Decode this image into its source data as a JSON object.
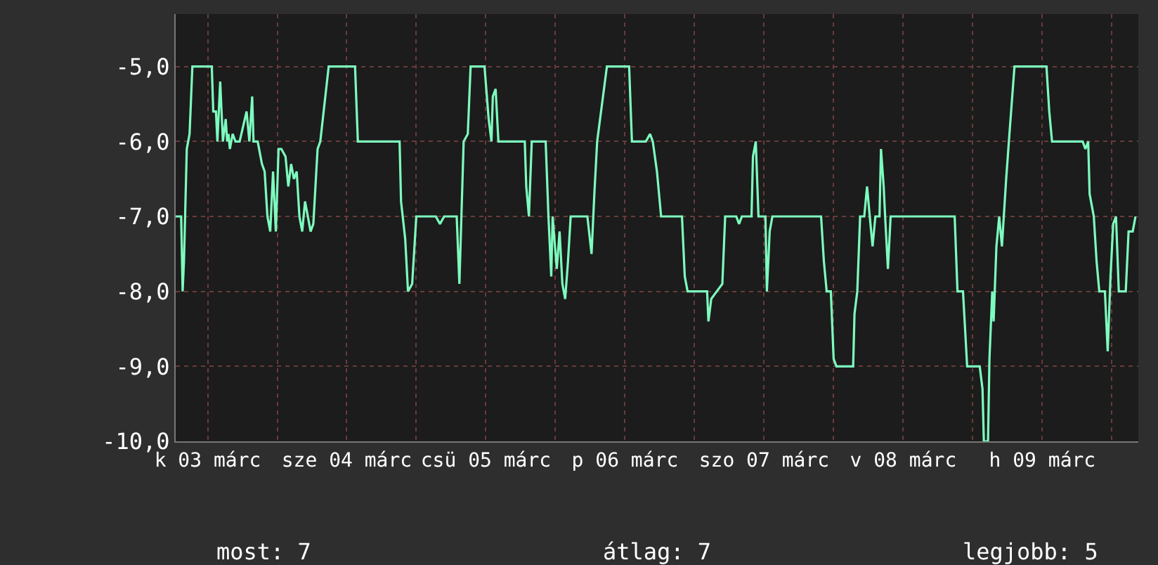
{
  "chart_data": {
    "type": "line",
    "x": [
      "--03-03T06:29",
      "--03-03T07:26",
      "--03-03T07:41",
      "--03-03T07:55",
      "--03-03T08:24",
      "--03-03T08:53",
      "--03-03T09:22",
      "--03-03T12:43",
      "--03-03T12:58",
      "--03-03T13:26",
      "--03-03T13:41",
      "--03-03T14:10",
      "--03-03T14:24",
      "--03-03T14:38",
      "--03-03T15:07",
      "--03-03T15:22",
      "--03-03T15:36",
      "--03-03T15:50",
      "--03-03T16:19",
      "--03-03T16:48",
      "--03-03T17:31",
      "--03-03T18:43",
      "--03-03T19:12",
      "--03-03T19:41",
      "--03-03T19:55",
      "--03-03T20:38",
      "--03-03T21:22",
      "--03-03T21:50",
      "--03-03T22:19",
      "--03-03T22:48",
      "--03-03T23:17",
      "--03-03T23:46",
      "--03-04T00:14",
      "--03-04T00:43",
      "--03-04T01:26",
      "--03-04T01:55",
      "--03-04T02:24",
      "--03-04T02:53",
      "--03-04T03:22",
      "--03-04T03:50",
      "--03-04T04:19",
      "--03-04T04:48",
      "--03-04T05:17",
      "--03-04T05:46",
      "--03-04T06:14",
      "--03-04T06:58",
      "--03-04T07:26",
      "--03-04T08:53",
      "--03-04T13:26",
      "--03-04T13:55",
      "--03-04T21:07",
      "--03-04T21:22",
      "--03-04T22:05",
      "--03-04T22:34",
      "--03-04T23:17",
      "--03-05T00:00",
      "--03-05T03:22",
      "--03-05T04:05",
      "--03-05T04:48",
      "--03-05T06:58",
      "--03-05T07:26",
      "--03-05T08:10",
      "--03-05T08:53",
      "--03-05T09:22",
      "--03-05T11:46",
      "--03-05T12:29",
      "--03-05T12:58",
      "--03-05T13:12",
      "--03-05T13:41",
      "--03-05T14:10",
      "--03-05T18:43",
      "--03-05T18:58",
      "--03-05T19:26",
      "--03-05T19:55",
      "--03-05T22:19",
      "--03-05T22:48",
      "--03-05T23:17",
      "--03-05T23:31",
      "--03-06T00:14",
      "--03-06T00:43",
      "--03-06T01:12",
      "--03-06T01:41",
      "--03-06T02:10",
      "--03-06T02:38",
      "--03-06T05:31",
      "--03-06T06:14",
      "--03-06T06:43",
      "--03-06T07:12",
      "--03-06T08:53",
      "--03-06T12:43",
      "--03-06T13:12",
      "--03-06T15:36",
      "--03-06T16:19",
      "--03-06T16:48",
      "--03-06T17:31",
      "--03-06T18:14",
      "--03-06T21:50",
      "--03-06T22:19",
      "--03-06T22:48",
      "--03-07T02:10",
      "--03-07T02:24",
      "--03-07T02:53",
      "--03-07T03:50",
      "--03-07T04:48",
      "--03-07T05:17",
      "--03-07T07:12",
      "--03-07T07:41",
      "--03-07T08:10",
      "--03-07T09:50",
      "--03-07T10:05",
      "--03-07T10:34",
      "--03-07T11:02",
      "--03-07T12:14",
      "--03-07T12:29",
      "--03-07T12:58",
      "--03-07T13:26",
      "--03-07T14:24",
      "--03-07T21:50",
      "--03-07T22:19",
      "--03-07T22:48",
      "--03-07T23:31",
      "--03-08T00:00",
      "--03-08T00:29",
      "--03-08T03:22",
      "--03-08T03:36",
      "--03-08T04:05",
      "--03-08T04:34",
      "--03-08T05:17",
      "--03-08T05:46",
      "--03-08T06:14",
      "--03-08T06:43",
      "--03-08T07:12",
      "--03-08T07:55",
      "--03-08T08:10",
      "--03-08T08:38",
      "--03-08T08:53",
      "--03-08T09:22",
      "--03-08T09:50",
      "--03-08T13:12",
      "--03-08T20:53",
      "--03-08T21:22",
      "--03-08T22:19",
      "--03-08T23:02",
      "--03-09T01:12",
      "--03-09T01:41",
      "--03-09T01:55",
      "--03-09T02:38",
      "--03-09T02:53",
      "--03-09T03:22",
      "--03-09T03:36",
      "--03-09T04:05",
      "--03-09T04:34",
      "--03-09T05:02",
      "--03-09T05:46",
      "--03-09T06:14",
      "--03-09T07:12",
      "--03-09T12:43",
      "--03-09T13:12",
      "--03-09T13:41",
      "--03-09T18:58",
      "--03-09T19:26",
      "--03-09T19:55",
      "--03-09T20:10",
      "--03-09T20:53",
      "--03-09T21:22",
      "--03-09T21:50",
      "--03-09T22:48",
      "--03-09T23:17",
      "--03-09T23:46",
      "--03-10T00:14",
      "--03-10T00:43",
      "--03-10T01:12",
      "--03-10T02:24",
      "--03-10T02:53",
      "--03-10T03:36",
      "--03-10T04:05"
    ],
    "series": [
      {
        "color": "#7dfcbe",
        "values": [
          -7,
          -7,
          -8,
          -7.6,
          -6.1,
          -5.9,
          -5.0,
          -5.0,
          -5.6,
          -5.6,
          -6.0,
          -5.2,
          -5.6,
          -6.0,
          -5.7,
          -6.0,
          -5.9,
          -6.1,
          -5.9,
          -6.0,
          -6.0,
          -5.6,
          -6.0,
          -5.4,
          -6.0,
          -6.0,
          -6.3,
          -6.4,
          -7.0,
          -7.2,
          -6.4,
          -7.2,
          -6.1,
          -6.1,
          -6.2,
          -6.6,
          -6.3,
          -6.5,
          -6.4,
          -7.0,
          -7.2,
          -6.8,
          -7.0,
          -7.2,
          -7.1,
          -6.1,
          -6.0,
          -5.0,
          -5.0,
          -6.0,
          -6.0,
          -6.8,
          -7.3,
          -8.0,
          -7.9,
          -7.0,
          -7.0,
          -7.1,
          -7.0,
          -7.0,
          -7.9,
          -6.0,
          -5.9,
          -5.0,
          -5.0,
          -5.7,
          -6.0,
          -5.4,
          -5.3,
          -6.0,
          -6.0,
          -6.6,
          -7.0,
          -6.0,
          -6.0,
          -7.0,
          -7.8,
          -7.0,
          -7.7,
          -7.2,
          -7.9,
          -8.1,
          -7.6,
          -7.0,
          -7.0,
          -7.5,
          -6.7,
          -6.0,
          -5.0,
          -5.0,
          -6.0,
          -6.0,
          -5.9,
          -6.0,
          -6.4,
          -7.0,
          -7.0,
          -7.8,
          -8.0,
          -8.0,
          -8.4,
          -8.1,
          -8.0,
          -7.9,
          -7.0,
          -7.0,
          -7.1,
          -7.0,
          -7.0,
          -6.2,
          -6.0,
          -7.0,
          -7.0,
          -8.0,
          -7.2,
          -7.0,
          -7.0,
          -7.0,
          -7.6,
          -8.0,
          -8.0,
          -8.9,
          -9.0,
          -9.0,
          -8.3,
          -8.0,
          -7.0,
          -7.0,
          -6.6,
          -7.0,
          -7.4,
          -7.0,
          -7.0,
          -6.1,
          -6.6,
          -7.0,
          -7.7,
          -7.0,
          -7.0,
          -7.0,
          -8.0,
          -8.0,
          -9.0,
          -9.0,
          -9.3,
          -10.0,
          -10.0,
          -8.9,
          -8.0,
          -8.4,
          -7.4,
          -7.0,
          -7.4,
          -6.5,
          -6.0,
          -5.0,
          -5.0,
          -5.6,
          -6.0,
          -6.0,
          -6.1,
          -6.0,
          -6.7,
          -7.0,
          -7.6,
          -8.0,
          -8.0,
          -8.8,
          -7.8,
          -7.1,
          -7.0,
          -8.0,
          -8.0,
          -7.2,
          -7.2,
          -7.0
        ]
      }
    ],
    "xlim": [
      "--03-03T06:29",
      "--03-10T04:34"
    ],
    "xticks": [
      {
        "value": "--03-03T12:00",
        "label": "k 03 márc"
      },
      {
        "value": "--03-04",
        "label": null
      },
      {
        "value": "--03-04T12:00",
        "label": "sze 04 márc"
      },
      {
        "value": "--03-05",
        "label": null
      },
      {
        "value": "--03-05T12:00",
        "label": "csü 05 márc"
      },
      {
        "value": "--03-06",
        "label": null
      },
      {
        "value": "--03-06T12:00",
        "label": "p 06 márc"
      },
      {
        "value": "--03-07",
        "label": null
      },
      {
        "value": "--03-07T12:00",
        "label": "szo 07 márc"
      },
      {
        "value": "--03-08",
        "label": null
      },
      {
        "value": "--03-08T12:00",
        "label": "v 08 márc"
      },
      {
        "value": "--03-09",
        "label": null
      },
      {
        "value": "--03-09T12:00",
        "label": "h 09 márc"
      },
      {
        "value": "--03-10",
        "label": null
      }
    ],
    "ylim": [
      -10,
      -4.3
    ],
    "yticks": [
      {
        "value": -10,
        "label": "-10,0"
      },
      {
        "value": -9,
        "label": "-9,0"
      },
      {
        "value": -8,
        "label": "-8,0"
      },
      {
        "value": -7,
        "label": "-7,0"
      },
      {
        "value": -6,
        "label": "-6,0"
      },
      {
        "value": -5,
        "label": "-5,0"
      }
    ],
    "grid": true,
    "line_style": "solid",
    "annotations": [
      "most: 7",
      "átlag: 7",
      "legjobb: 5"
    ]
  }
}
